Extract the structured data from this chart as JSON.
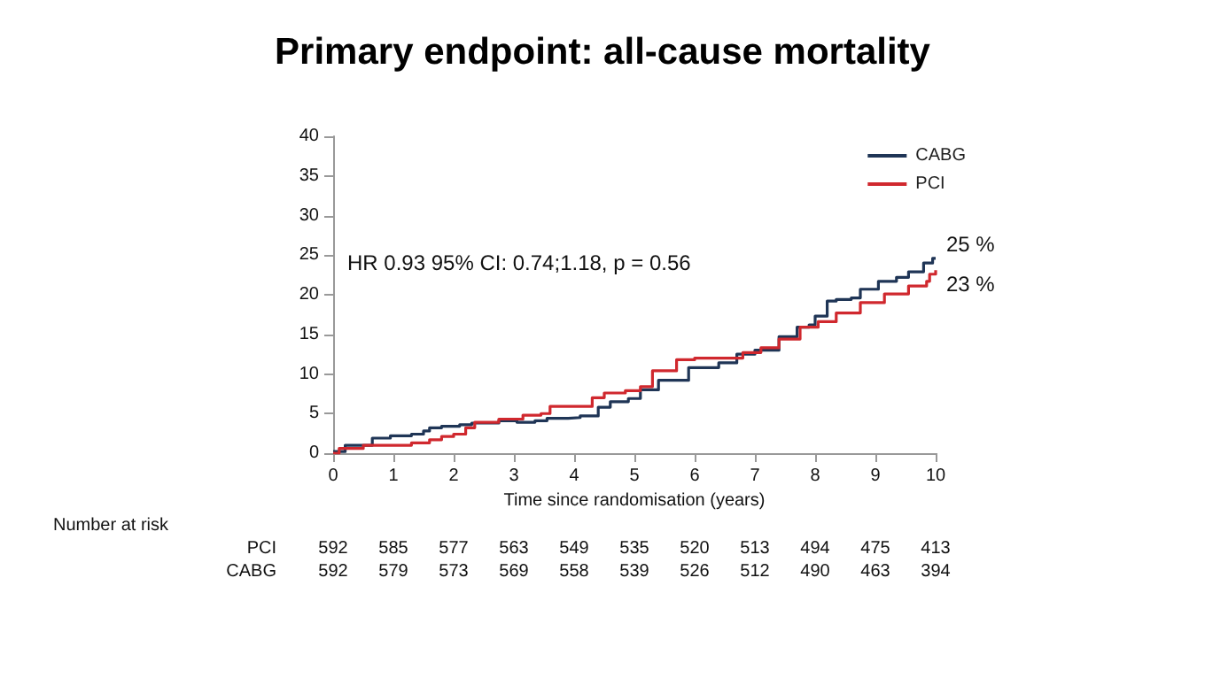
{
  "chart_data": {
    "type": "step",
    "title": "Primary endpoint: all-cause mortality",
    "xlabel": "Time since randomisation (years)",
    "xlim": [
      0,
      10
    ],
    "xticks": [
      0,
      1,
      2,
      3,
      4,
      5,
      6,
      7,
      8,
      9,
      10
    ],
    "ylim": [
      0,
      40
    ],
    "yticks": [
      0,
      5,
      10,
      15,
      20,
      25,
      30,
      35,
      40
    ],
    "grid": false,
    "legend": "top right",
    "marker": "none",
    "line_style": "solid",
    "series": [
      {
        "name": "CABG",
        "color": "#1f3556",
        "x": [
          0,
          0.2,
          0.55,
          0.65,
          0.95,
          1.3,
          1.5,
          1.6,
          1.8,
          2.1,
          2.3,
          2.75,
          3.05,
          3.35,
          3.55,
          3.9,
          4.1,
          4.4,
          4.6,
          4.9,
          5.1,
          5.4,
          5.9,
          6.4,
          6.7,
          7,
          7.4,
          7.7,
          7.9,
          8,
          8.2,
          8.35,
          8.6,
          8.75,
          9.05,
          9.35,
          9.55,
          9.8,
          9.95,
          10
        ],
        "values": [
          0.2,
          1,
          1,
          1.9,
          2.2,
          2.4,
          2.8,
          3.2,
          3.4,
          3.6,
          3.8,
          4.1,
          3.9,
          4.1,
          4.4,
          4.5,
          4.7,
          5.8,
          6.5,
          6.9,
          8,
          9.2,
          10.8,
          11.4,
          12.5,
          13,
          14.7,
          15.9,
          16.2,
          17.3,
          19.2,
          19.4,
          19.6,
          20.7,
          21.7,
          22.2,
          22.9,
          24,
          24.6,
          24.6
        ]
      },
      {
        "name": "PCI",
        "color": "#d0282e",
        "x": [
          0,
          0.1,
          0.5,
          0.95,
          1.3,
          1.6,
          1.8,
          2,
          2.2,
          2.35,
          2.75,
          3.15,
          3.45,
          3.6,
          4,
          4.3,
          4.5,
          4.85,
          5.1,
          5.3,
          5.7,
          6,
          6.5,
          6.8,
          7.1,
          7.4,
          7.75,
          8.05,
          8.35,
          8.75,
          9.15,
          9.55,
          9.85,
          9.9,
          10
        ],
        "values": [
          0,
          0.6,
          1,
          1,
          1.3,
          1.7,
          2.1,
          2.4,
          3.2,
          3.9,
          4.3,
          4.8,
          5,
          5.9,
          5.9,
          7,
          7.6,
          7.9,
          8.4,
          10.4,
          11.8,
          12,
          12,
          12.7,
          13.3,
          14.4,
          15.9,
          16.6,
          17.7,
          19,
          20.1,
          21.1,
          21.7,
          22.6,
          23.1
        ]
      }
    ],
    "annotations": [
      "HR 0.93 95% CI: 0.74;1.18, p = 0.56",
      {
        "text": "25 %",
        "x": 10,
        "y": 24.6
      },
      {
        "text": "23 %",
        "x": 10,
        "y": 23.1
      },
      "Number at risk",
      "PCI 592 585 577 563 549 535 520 513 494 475 413",
      "CABG 592 579 573 569 558 539 526 512 490 463 394"
    ]
  }
}
